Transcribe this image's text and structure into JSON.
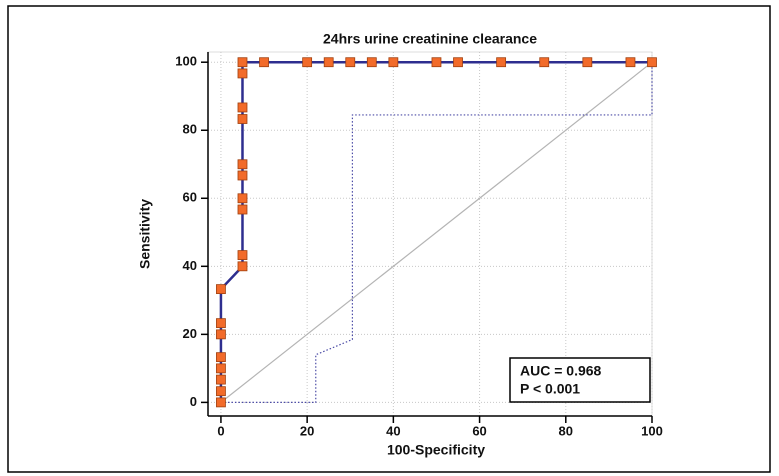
{
  "chart_data": {
    "type": "line",
    "title": "24hrs urine creatinine clearance",
    "x_label": "100-Specificity",
    "y_label": "Sensitivity",
    "xlim": [
      -3,
      100
    ],
    "ylim": [
      -4,
      103
    ],
    "xticks": [
      0,
      20,
      40,
      60,
      80,
      100
    ],
    "yticks": [
      0,
      20,
      40,
      60,
      80,
      100
    ],
    "grid": true,
    "annotations": [
      "AUC = 0.968",
      "P < 0.001"
    ],
    "series": [
      {
        "color": "#2e2e8f",
        "marker_color": "#f26b2a",
        "style": "solid",
        "x": [
          0,
          0,
          0,
          0,
          0,
          0,
          0,
          0,
          5,
          5,
          5,
          5,
          5,
          5,
          5,
          5,
          5,
          5,
          10,
          20,
          25,
          30,
          35,
          40,
          50,
          55,
          65,
          75,
          85,
          95,
          100
        ],
        "values": [
          0,
          3.3,
          6.7,
          10,
          13.3,
          20,
          23.3,
          33.3,
          40,
          43.3,
          56.7,
          60,
          66.7,
          70,
          83.3,
          86.7,
          96.7,
          100,
          100,
          100,
          100,
          100,
          100,
          100,
          100,
          100,
          100,
          100,
          100,
          100,
          100
        ]
      },
      {
        "color": "#4b4ba6",
        "style": "dotted",
        "x": [
          0,
          22,
          22,
          30.5,
          30.5,
          100,
          100
        ],
        "values": [
          0,
          0,
          14,
          18.5,
          84.5,
          84.5,
          100
        ]
      },
      {
        "color": "#b4b4b4",
        "style": "solid",
        "x": [
          0,
          100
        ],
        "values": [
          0,
          100
        ]
      }
    ]
  }
}
